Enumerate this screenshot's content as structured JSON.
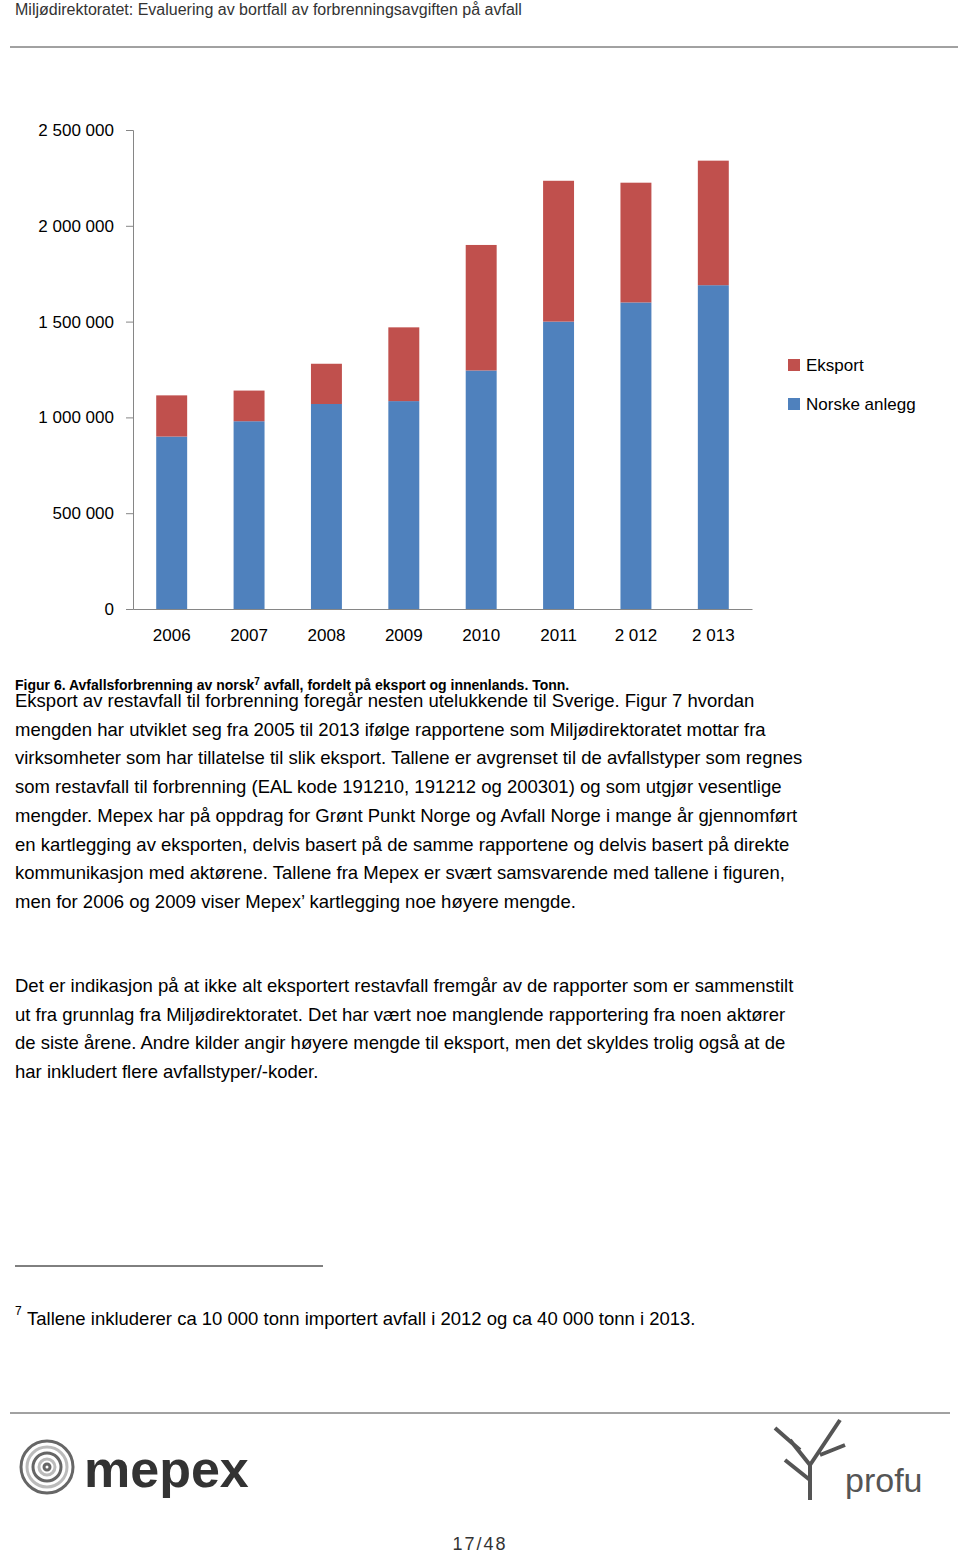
{
  "header": {
    "title": "Miljødirektoratet: Evaluering av bortfall av forbrenningsavgiften på avfall"
  },
  "chart_data": {
    "type": "bar",
    "stacked": true,
    "categories": [
      "2006",
      "2007",
      "2008",
      "2009",
      "2010",
      "2011",
      "2 012",
      "2 013"
    ],
    "series": [
      {
        "name": "Norske anlegg",
        "color": "#4f81bd",
        "values": [
          900000,
          980000,
          1070000,
          1085000,
          1245000,
          1500000,
          1600000,
          1690000
        ]
      },
      {
        "name": "Eksport",
        "color": "#c0504d",
        "values": [
          215000,
          160000,
          210000,
          385000,
          655000,
          735000,
          625000,
          650000
        ]
      }
    ],
    "ylim": [
      0,
      2500000
    ],
    "yticks": [
      0,
      {
        "value": 500000,
        "label": "500 000"
      },
      {
        "value": 1000000,
        "label": "1 000 000"
      },
      {
        "value": 1500000,
        "label": "1 500 000"
      },
      {
        "value": 2000000,
        "label": "2 000 000"
      },
      {
        "value": 2500000,
        "label": "2 500 000"
      }
    ],
    "grid": false,
    "legend": "right"
  },
  "caption": {
    "before": "Figur 6. Avfallsforbrenning av norsk",
    "sup": "7",
    "after": " avfall, fordelt på eksport og innenlands. Tonn."
  },
  "paragraphs": [
    [
      "Eksport av restavfall til forbrenning foregår nesten utelukkende til Sverige. Figur 7 hvordan",
      "mengden har utviklet seg fra 2005 til 2013 ifølge rapportene som Miljødirektoratet mottar fra",
      "virksomheter som har tillatelse til slik eksport. Tallene er avgrenset til de avfallstyper som regnes",
      "som restavfall til forbrenning (EAL kode 191210, 191212 og 200301) og som utgjør vesentlige",
      "mengder. Mepex har på oppdrag for Grønt Punkt Norge og Avfall Norge i mange år gjennomført",
      "en kartlegging av eksporten, delvis basert på de samme rapportene og delvis basert på direkte",
      "kommunikasjon med aktørene. Tallene fra Mepex er svært samsvarende med tallene i figuren,",
      "men for 2006 og 2009 viser Mepex’ kartlegging noe høyere mengde."
    ],
    [
      "Det er indikasjon på at ikke alt eksportert restavfall fremgår av de rapporter som er sammenstilt",
      "ut fra grunnlag fra Miljødirektoratet. Det har vært noe manglende rapportering fra noen aktører",
      "de siste årene. Andre kilder angir høyere mengde til eksport, men det skyldes trolig også at de",
      "har inkludert flere avfallstyper/-koder."
    ]
  ],
  "footnote": {
    "marker": "7",
    "text": "Tallene inkluderer ca 10 000 tonn importert avfall i 2012 og ca 40 000 tonn i 2013."
  },
  "footer": {
    "logos": [
      "mepex",
      "profu"
    ],
    "page": "17/48"
  }
}
